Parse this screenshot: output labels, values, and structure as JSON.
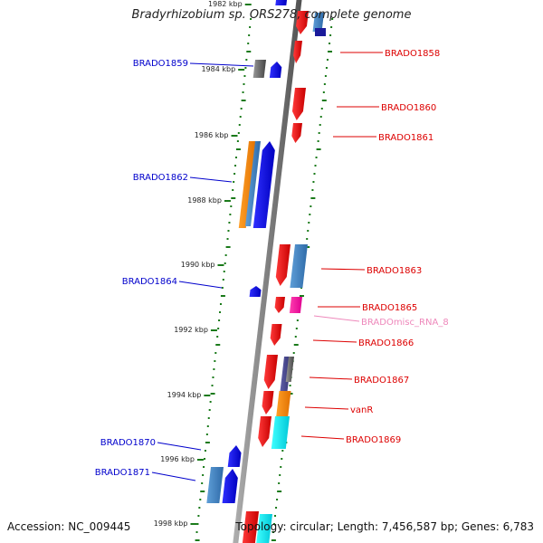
{
  "title": "Bradyrhizobium sp. ORS278, complete genome",
  "footer": {
    "accession": "Accession: NC_009445",
    "summary": "Topology: circular; Length: 7,456,587 bp; Genes: 6,783"
  },
  "ticks": [
    {
      "label": "1982 kbp",
      "kbp": 1982
    },
    {
      "label": "1984 kbp",
      "kbp": 1984
    },
    {
      "label": "1986 kbp",
      "kbp": 1986
    },
    {
      "label": "1988 kbp",
      "kbp": 1988
    },
    {
      "label": "1990 kbp",
      "kbp": 1990
    },
    {
      "label": "1992 kbp",
      "kbp": 1992
    },
    {
      "label": "1994 kbp",
      "kbp": 1994
    },
    {
      "label": "1996 kbp",
      "kbp": 1996
    },
    {
      "label": "1998 kbp",
      "kbp": 1998
    }
  ],
  "left_labels": [
    "BRADO1859",
    "BRADO1862",
    "BRADO1864",
    "BRADO1870",
    "BRADO1871"
  ],
  "right_labels": [
    {
      "text": "BRADO1858",
      "color": "#dd0000"
    },
    {
      "text": "BRADO1860",
      "color": "#dd0000"
    },
    {
      "text": "BRADO1861",
      "color": "#dd0000"
    },
    {
      "text": "BRADO1863",
      "color": "#dd0000"
    },
    {
      "text": "BRADO1865",
      "color": "#dd0000"
    },
    {
      "text": "BRADOmisc_RNA_8",
      "color": "#ee88bb"
    },
    {
      "text": "BRADO1866",
      "color": "#dd0000"
    },
    {
      "text": "BRADO1867",
      "color": "#dd0000"
    },
    {
      "text": "vanR",
      "color": "#dd0000"
    },
    {
      "text": "BRADO1869",
      "color": "#dd0000"
    }
  ],
  "colors": {
    "forward_strand": "#0000dd",
    "reverse_strand": "#ee0000",
    "label_left": "#0000cc",
    "axis": "#777777",
    "gc_dots": "#1a7a1a"
  }
}
